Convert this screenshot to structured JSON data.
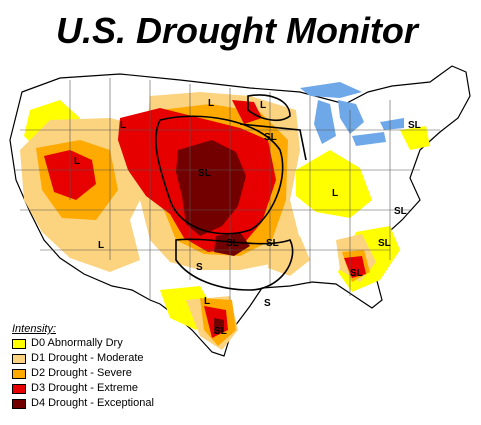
{
  "title": "U.S. Drought Monitor",
  "colors": {
    "d0": "#ffff00",
    "d1": "#fcd37f",
    "d2": "#ffaa00",
    "d3": "#e60000",
    "d4": "#730000",
    "water": "#6fa8e8",
    "boundary": "#000000"
  },
  "legend": {
    "heading": "Intensity:",
    "items": [
      {
        "label": "D0 Abnormally Dry",
        "color": "#ffff00"
      },
      {
        "label": "D1 Drought - Moderate",
        "color": "#fcd37f"
      },
      {
        "label": "D2 Drought - Severe",
        "color": "#ffaa00"
      },
      {
        "label": "D3 Drought - Extreme",
        "color": "#e60000"
      },
      {
        "label": "D4 Drought - Exceptional",
        "color": "#730000"
      }
    ]
  },
  "map_labels": [
    "L",
    "L",
    "L",
    "L",
    "SL",
    "SL",
    "L",
    "SL",
    "SL",
    "SL",
    "SL",
    "SL",
    "L",
    "S",
    "S",
    "L",
    "SL",
    "SL"
  ]
}
